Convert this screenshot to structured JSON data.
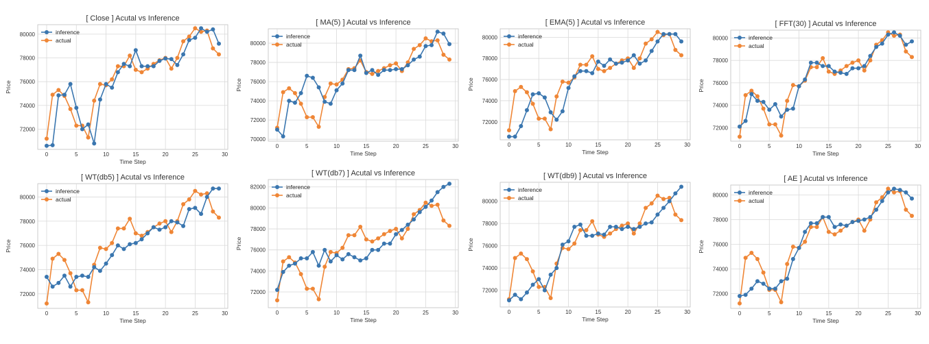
{
  "colors": {
    "inference": "#3a76af",
    "actual": "#ef8636"
  },
  "chart_data": [
    {
      "type": "line",
      "title": "[ Close ] Acutal vs Inference",
      "xlabel": "Time Step",
      "ylabel": "Price",
      "xlim": [
        -1.5,
        30.5
      ],
      "ylim": [
        70300,
        80800
      ],
      "xticks": [
        0,
        5,
        10,
        15,
        20,
        25,
        30
      ],
      "xtick_labels": [
        "0",
        "5",
        "10",
        "15",
        "20",
        "25",
        "30"
      ],
      "yticks": [
        72000,
        74000,
        76000,
        78000,
        80000
      ],
      "ytick_labels": [
        "72000",
        "74000",
        "76000",
        "78000",
        "80000"
      ],
      "legend": "top-left",
      "grid": true,
      "x": [
        0,
        1,
        2,
        3,
        4,
        5,
        6,
        7,
        8,
        9,
        10,
        11,
        12,
        13,
        14,
        15,
        16,
        17,
        18,
        19,
        20,
        21,
        22,
        23,
        24,
        25,
        26,
        27,
        28,
        29
      ],
      "series": [
        {
          "name": "inference",
          "values": [
            70600,
            70650,
            74850,
            74900,
            75800,
            73800,
            72000,
            72400,
            70800,
            74500,
            75800,
            75500,
            76800,
            77500,
            77300,
            78650,
            77300,
            77300,
            77300,
            77750,
            77950,
            77900,
            77400,
            78300,
            79500,
            79700,
            80500,
            80200,
            80400,
            79200
          ]
        },
        {
          "name": "actual",
          "values": [
            71200,
            74900,
            75300,
            74800,
            73700,
            72300,
            72300,
            71300,
            74400,
            75800,
            75700,
            76200,
            77300,
            77300,
            78200,
            77000,
            76800,
            77100,
            77500,
            77800,
            78000,
            77100,
            78000,
            79400,
            79800,
            80500,
            80200,
            80300,
            78800,
            78300
          ]
        }
      ]
    },
    {
      "type": "line",
      "title": "[ MA(5) ] Acutal vs Inference",
      "xlabel": "Time Step",
      "ylabel": "Price",
      "xlim": [
        -1.5,
        30.5
      ],
      "ylim": [
        69800,
        81500
      ],
      "xticks": [
        0,
        5,
        10,
        15,
        20,
        25,
        30
      ],
      "xtick_labels": [
        "0",
        "5",
        "10",
        "15",
        "20",
        "25",
        "30"
      ],
      "yticks": [
        70000,
        72000,
        74000,
        76000,
        78000,
        80000
      ],
      "ytick_labels": [
        "70000",
        "72000",
        "74000",
        "76000",
        "78000",
        "80000"
      ],
      "legend": "top-left",
      "grid": true,
      "x": [
        0,
        1,
        2,
        3,
        4,
        5,
        6,
        7,
        8,
        9,
        10,
        11,
        12,
        13,
        14,
        15,
        16,
        17,
        18,
        19,
        20,
        21,
        22,
        23,
        24,
        25,
        26,
        27,
        28,
        29
      ],
      "series": [
        {
          "name": "inference",
          "values": [
            71000,
            70300,
            74000,
            73800,
            74800,
            76600,
            76400,
            75400,
            73900,
            73700,
            75100,
            75800,
            77200,
            77200,
            78700,
            76900,
            77200,
            76700,
            77200,
            77200,
            77300,
            77300,
            77700,
            78300,
            78600,
            79700,
            79800,
            81200,
            81000,
            79900
          ]
        },
        {
          "name": "actual",
          "values": [
            71200,
            74900,
            75300,
            74800,
            73700,
            72300,
            72300,
            71300,
            74400,
            75800,
            75700,
            76200,
            77300,
            77400,
            78200,
            77000,
            76800,
            77100,
            77400,
            77700,
            77900,
            77100,
            78000,
            79400,
            79800,
            80500,
            80200,
            80300,
            78800,
            78300
          ]
        }
      ]
    },
    {
      "type": "line",
      "title": "[ EMA(5) ] Acutal vs Inference",
      "xlabel": "Time Step",
      "ylabel": "Price",
      "xlim": [
        -1.5,
        30.5
      ],
      "ylim": [
        70300,
        80800
      ],
      "xticks": [
        0,
        5,
        10,
        15,
        20,
        25,
        30
      ],
      "xtick_labels": [
        "0",
        "5",
        "10",
        "15",
        "20",
        "25",
        "30"
      ],
      "yticks": [
        72000,
        74000,
        76000,
        78000,
        80000
      ],
      "ytick_labels": [
        "72000",
        "74000",
        "76000",
        "78000",
        "80000"
      ],
      "legend": "top-left",
      "grid": true,
      "x": [
        0,
        1,
        2,
        3,
        4,
        5,
        6,
        7,
        8,
        9,
        10,
        11,
        12,
        13,
        14,
        15,
        16,
        17,
        18,
        19,
        20,
        21,
        22,
        23,
        24,
        25,
        26,
        27,
        28,
        29
      ],
      "series": [
        {
          "name": "inference",
          "values": [
            70600,
            70600,
            71600,
            73100,
            74600,
            74700,
            74300,
            72900,
            72200,
            73000,
            75200,
            76300,
            76800,
            76800,
            76600,
            77700,
            77300,
            77900,
            77500,
            77600,
            77800,
            78300,
            77500,
            77800,
            78700,
            79600,
            80300,
            80300,
            80300,
            79600
          ]
        },
        {
          "name": "actual",
          "values": [
            71200,
            74900,
            75300,
            74800,
            73700,
            72300,
            72300,
            71300,
            74400,
            75800,
            75700,
            76200,
            77400,
            77400,
            78200,
            77000,
            76800,
            77100,
            77500,
            77800,
            78000,
            77100,
            78000,
            79400,
            79800,
            80500,
            80200,
            80300,
            78800,
            78300
          ]
        }
      ]
    },
    {
      "type": "line",
      "title": "[ FFT(30) ] Acutal vs Inference",
      "xlabel": "Time Step",
      "ylabel": "Price",
      "xlim": [
        -1.5,
        30.5
      ],
      "ylim": [
        70800,
        80700
      ],
      "xticks": [
        0,
        5,
        10,
        15,
        20,
        25,
        30
      ],
      "xtick_labels": [
        "0",
        "5",
        "10",
        "15",
        "20",
        "25",
        "30"
      ],
      "yticks": [
        72000,
        74000,
        76000,
        78000,
        80000
      ],
      "ytick_labels": [
        "72000",
        "74000",
        "76000",
        "78000",
        "80000"
      ],
      "legend": "top-left",
      "grid": true,
      "x": [
        0,
        1,
        2,
        3,
        4,
        5,
        6,
        7,
        8,
        9,
        10,
        11,
        12,
        13,
        14,
        15,
        16,
        17,
        18,
        19,
        20,
        21,
        22,
        23,
        24,
        25,
        26,
        27,
        28,
        29
      ],
      "series": [
        {
          "name": "inference",
          "values": [
            72100,
            72600,
            75000,
            74400,
            74300,
            73600,
            74100,
            73000,
            73600,
            73700,
            75700,
            76300,
            77800,
            77800,
            77500,
            77500,
            77000,
            76900,
            76800,
            77300,
            77300,
            77500,
            78400,
            79200,
            79500,
            80300,
            80500,
            80200,
            79400,
            79700
          ]
        },
        {
          "name": "actual",
          "values": [
            71200,
            74900,
            75300,
            74800,
            73700,
            72300,
            72300,
            71300,
            74400,
            75800,
            75700,
            76200,
            77400,
            77400,
            78200,
            77000,
            76800,
            77100,
            77500,
            77800,
            78000,
            77100,
            78000,
            79400,
            79800,
            80500,
            80200,
            80300,
            78800,
            78300
          ]
        }
      ]
    },
    {
      "type": "line",
      "title": "[ WT(db5) ] Acutal vs Inference",
      "xlabel": "Time Step",
      "ylabel": "Price",
      "xlim": [
        -1.5,
        30.5
      ],
      "ylim": [
        70800,
        81100
      ],
      "xticks": [
        0,
        5,
        10,
        15,
        20,
        25,
        30
      ],
      "xtick_labels": [
        "0",
        "5",
        "10",
        "15",
        "20",
        "25",
        "30"
      ],
      "yticks": [
        72000,
        74000,
        76000,
        78000,
        80000
      ],
      "ytick_labels": [
        "72000",
        "74000",
        "76000",
        "78000",
        "80000"
      ],
      "legend": "top-left",
      "grid": true,
      "x": [
        0,
        1,
        2,
        3,
        4,
        5,
        6,
        7,
        8,
        9,
        10,
        11,
        12,
        13,
        14,
        15,
        16,
        17,
        18,
        19,
        20,
        21,
        22,
        23,
        24,
        25,
        26,
        27,
        28,
        29
      ],
      "series": [
        {
          "name": "inference",
          "values": [
            73400,
            72600,
            72900,
            73500,
            72600,
            73400,
            73500,
            73400,
            74200,
            73900,
            74500,
            75200,
            76000,
            75700,
            76100,
            76200,
            76500,
            77000,
            77500,
            77300,
            77500,
            78000,
            77900,
            77600,
            79000,
            79100,
            78600,
            80000,
            80700,
            80700
          ]
        },
        {
          "name": "actual",
          "values": [
            71200,
            74900,
            75300,
            74800,
            73700,
            72300,
            72300,
            71300,
            74400,
            75800,
            75700,
            76200,
            77400,
            77400,
            78200,
            77000,
            76800,
            77100,
            77500,
            77800,
            78000,
            77100,
            78000,
            79400,
            79800,
            80500,
            80200,
            80300,
            78800,
            78300
          ]
        }
      ]
    },
    {
      "type": "line",
      "title": "[ WT(db7) ] Acutal vs Inference",
      "xlabel": "Time Step",
      "ylabel": "Price",
      "xlim": [
        -1.5,
        30.5
      ],
      "ylim": [
        70500,
        82700
      ],
      "xticks": [
        0,
        5,
        10,
        15,
        20,
        25,
        30
      ],
      "xtick_labels": [
        "0",
        "5",
        "10",
        "15",
        "20",
        "25",
        "30"
      ],
      "yticks": [
        72000,
        74000,
        76000,
        78000,
        80000,
        82000
      ],
      "ytick_labels": [
        "72000",
        "74000",
        "76000",
        "78000",
        "80000",
        "82000"
      ],
      "legend": "top-left",
      "grid": true,
      "x": [
        0,
        1,
        2,
        3,
        4,
        5,
        6,
        7,
        8,
        9,
        10,
        11,
        12,
        13,
        14,
        15,
        16,
        17,
        18,
        19,
        20,
        21,
        22,
        23,
        24,
        25,
        26,
        27,
        28,
        29
      ],
      "series": [
        {
          "name": "inference",
          "values": [
            72200,
            73900,
            74500,
            74700,
            75200,
            75200,
            75800,
            74500,
            76000,
            74900,
            75500,
            75100,
            75600,
            75300,
            75000,
            75200,
            76000,
            76000,
            76600,
            76600,
            77500,
            77900,
            78400,
            78900,
            79600,
            80100,
            80700,
            81500,
            82000,
            82300
          ]
        },
        {
          "name": "actual",
          "values": [
            71200,
            74900,
            75300,
            74800,
            73700,
            72300,
            72300,
            71300,
            74400,
            75800,
            75700,
            76200,
            77400,
            77400,
            78200,
            77000,
            76800,
            77100,
            77500,
            77800,
            78000,
            77100,
            78000,
            79400,
            79800,
            80500,
            80200,
            80300,
            78800,
            78300
          ]
        }
      ]
    },
    {
      "type": "line",
      "title": "[ WT(db9) ] Acutal vs Inference",
      "xlabel": "Time Step",
      "ylabel": "Price",
      "xlim": [
        -1.5,
        30.5
      ],
      "ylim": [
        70500,
        81700
      ],
      "xticks": [
        0,
        5,
        10,
        15,
        20,
        25,
        30
      ],
      "xtick_labels": [
        "0",
        "5",
        "10",
        "15",
        "20",
        "25",
        "30"
      ],
      "yticks": [
        72000,
        74000,
        76000,
        78000,
        80000
      ],
      "ytick_labels": [
        "72000",
        "74000",
        "76000",
        "78000",
        "80000"
      ],
      "legend": "top-left",
      "grid": true,
      "x": [
        0,
        1,
        2,
        3,
        4,
        5,
        6,
        7,
        8,
        9,
        10,
        11,
        12,
        13,
        14,
        15,
        16,
        17,
        18,
        19,
        20,
        21,
        22,
        23,
        24,
        25,
        26,
        27,
        28,
        29
      ],
      "series": [
        {
          "name": "inference",
          "values": [
            71100,
            71600,
            71200,
            71800,
            72500,
            73000,
            72000,
            73400,
            74000,
            76100,
            76400,
            77700,
            77900,
            76900,
            76900,
            77100,
            77000,
            77700,
            77700,
            77500,
            77700,
            77500,
            77700,
            78000,
            78100,
            78800,
            79400,
            80000,
            80700,
            81300
          ]
        },
        {
          "name": "actual",
          "values": [
            71200,
            74900,
            75300,
            74800,
            73700,
            72300,
            72300,
            71300,
            74400,
            75800,
            75700,
            76200,
            77400,
            77400,
            78200,
            77000,
            76800,
            77100,
            77500,
            77800,
            78000,
            77100,
            78000,
            79400,
            79800,
            80500,
            80200,
            80300,
            78800,
            78300
          ]
        }
      ]
    },
    {
      "type": "line",
      "title": "[ AE ] Acutal vs Inference",
      "xlabel": "Time Step",
      "ylabel": "Price",
      "xlim": [
        -1.5,
        30.5
      ],
      "ylim": [
        70800,
        80800
      ],
      "xticks": [
        0,
        5,
        10,
        15,
        20,
        25,
        30
      ],
      "xtick_labels": [
        "0",
        "5",
        "10",
        "15",
        "20",
        "25",
        "30"
      ],
      "yticks": [
        72000,
        74000,
        76000,
        78000,
        80000
      ],
      "ytick_labels": [
        "72000",
        "74000",
        "76000",
        "78000",
        "80000"
      ],
      "legend": "top-left",
      "grid": true,
      "x": [
        0,
        1,
        2,
        3,
        4,
        5,
        6,
        7,
        8,
        9,
        10,
        11,
        12,
        13,
        14,
        15,
        16,
        17,
        18,
        19,
        20,
        21,
        22,
        23,
        24,
        25,
        26,
        27,
        28,
        29
      ],
      "series": [
        {
          "name": "inference",
          "values": [
            71800,
            71900,
            72400,
            73000,
            72800,
            72400,
            72400,
            73000,
            73200,
            74800,
            75700,
            77000,
            77700,
            77700,
            78200,
            78200,
            77400,
            77600,
            77500,
            77800,
            77900,
            78000,
            78200,
            78800,
            79500,
            80200,
            80500,
            80400,
            80200,
            79700
          ]
        },
        {
          "name": "actual",
          "values": [
            71200,
            74900,
            75300,
            74800,
            73700,
            72300,
            72300,
            71300,
            74400,
            75800,
            75700,
            76200,
            77400,
            77400,
            78200,
            77000,
            76800,
            77100,
            77500,
            77800,
            78000,
            77100,
            78000,
            79400,
            79800,
            80500,
            80200,
            80300,
            78800,
            78300
          ]
        }
      ]
    }
  ]
}
